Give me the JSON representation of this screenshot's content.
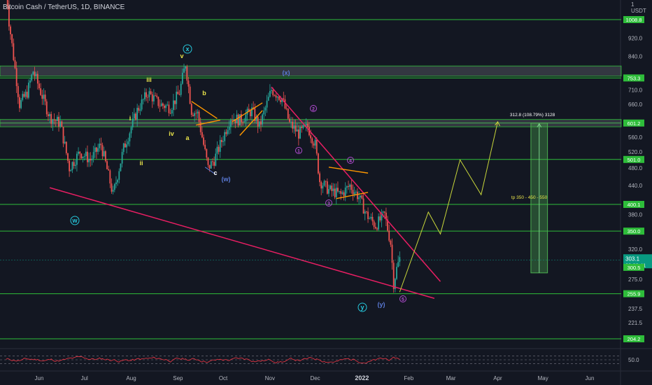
{
  "header": {
    "symbol_title": "Bitcoin Cash / TetherUS, 1D, BINANCE"
  },
  "price_axis": {
    "unit_top": "1",
    "unit": "USDT",
    "ticks": [
      "920.0",
      "840.0",
      "710.0",
      "660.0",
      "560.0",
      "520.0",
      "480.0",
      "440.0",
      "380.0",
      "320.0",
      "275.0",
      "237.5",
      "221.5",
      "50.0"
    ]
  },
  "time_axis": {
    "labels": [
      "Jun",
      "Jul",
      "Aug",
      "Sep",
      "Oct",
      "Nov",
      "Dec",
      "2022",
      "Feb",
      "Mar",
      "Apr",
      "May",
      "Jun"
    ]
  },
  "levels": [
    {
      "label": "1008.8"
    },
    {
      "label": "753.3"
    },
    {
      "label": "601.2"
    },
    {
      "label": "501.0"
    },
    {
      "label": "400.1"
    },
    {
      "label": "350.0"
    },
    {
      "label": "255.9"
    },
    {
      "label": "204.2"
    }
  ],
  "current_price": {
    "label": "303.1",
    "countdown": "08:08:41"
  },
  "prev_close_label": "300.5",
  "colors": {
    "background": "#131722",
    "support_resistance": "#2ebd3a",
    "trendline": "#e91e63",
    "wedge": "#ff9800",
    "projection": "#c8d63a",
    "target_box": "#4caf50",
    "candle_up": "#26a69a",
    "candle_down": "#ef5350",
    "rsi_line": "#f23645",
    "wave_teal": "#26c6da",
    "wave_blue": "#5b7bd8",
    "wave_purple": "#b04bd0",
    "wave_yellow": "#e8e34a"
  },
  "annotations": {
    "wave_labels": [
      {
        "text": "x",
        "style": "circle-teal"
      },
      {
        "text": "v",
        "style": "yellow"
      },
      {
        "text": "iii",
        "style": "yellow"
      },
      {
        "text": "b",
        "style": "yellow"
      },
      {
        "text": "i",
        "style": "yellow"
      },
      {
        "text": "iv",
        "style": "yellow"
      },
      {
        "text": "a",
        "style": "yellow"
      },
      {
        "text": "ii",
        "style": "yellow"
      },
      {
        "text": "c",
        "style": "white"
      },
      {
        "text": "(w)",
        "style": "blue"
      },
      {
        "text": "w",
        "style": "circle-teal"
      },
      {
        "text": "(x)",
        "style": "blue"
      },
      {
        "text": "2",
        "style": "circle-purple"
      },
      {
        "text": "1",
        "style": "circle-purple"
      },
      {
        "text": "4",
        "style": "circle-purple"
      },
      {
        "text": "3",
        "style": "circle-purple"
      },
      {
        "text": "y",
        "style": "circle-teal"
      },
      {
        "text": "(y)",
        "style": "blue"
      },
      {
        "text": "5",
        "style": "circle-purple"
      }
    ],
    "target_text": "312.8 (108.79%) 3128",
    "tp_text": "tp 350 - 450 - 550"
  },
  "chart_data": {
    "type": "candlestick",
    "symbol": "BCHUSDT",
    "timeframe": "1D",
    "exchange": "BINANCE",
    "x_range": [
      "2021-05-10",
      "2022-06-15"
    ],
    "y_range": [
      195,
      1100
    ],
    "price_scale": "log",
    "grid": false,
    "horizontal_levels": [
      1008.8,
      753.3,
      601.2,
      501.0,
      400.1,
      350.0,
      255.9,
      204.2
    ],
    "last_price": 303.1,
    "wave_points": [
      {
        "date": "2021-09-06",
        "price": 820,
        "label": "v"
      },
      {
        "date": "2021-09-21",
        "price": 450,
        "label": "c"
      },
      {
        "date": "2021-06-21",
        "price": 395,
        "label": "w"
      },
      {
        "date": "2021-11-02",
        "price": 720,
        "label": "(x)"
      },
      {
        "date": "2022-01-22",
        "price": 255,
        "label": "5"
      }
    ],
    "trendlines": [
      {
        "from": {
          "date": "2021-06-08",
          "price": 435
        },
        "to": {
          "date": "2022-02-18",
          "price": 250
        }
      },
      {
        "from": {
          "date": "2021-11-02",
          "price": 720
        },
        "to": {
          "date": "2022-02-22",
          "price": 272
        }
      }
    ],
    "projection_path": [
      {
        "date": "2022-01-26",
        "price": 258
      },
      {
        "date": "2022-02-14",
        "price": 385
      },
      {
        "date": "2022-02-22",
        "price": 345
      },
      {
        "date": "2022-03-07",
        "price": 500
      },
      {
        "date": "2022-03-21",
        "price": 420
      },
      {
        "date": "2022-04-01",
        "price": 605
      }
    ],
    "target_box": {
      "from": "2022-04-23",
      "to": "2022-05-04",
      "low": 284,
      "high": 601.2
    },
    "rsi": {
      "period": 14,
      "upper": 70,
      "lower": 30,
      "last": 30
    }
  }
}
